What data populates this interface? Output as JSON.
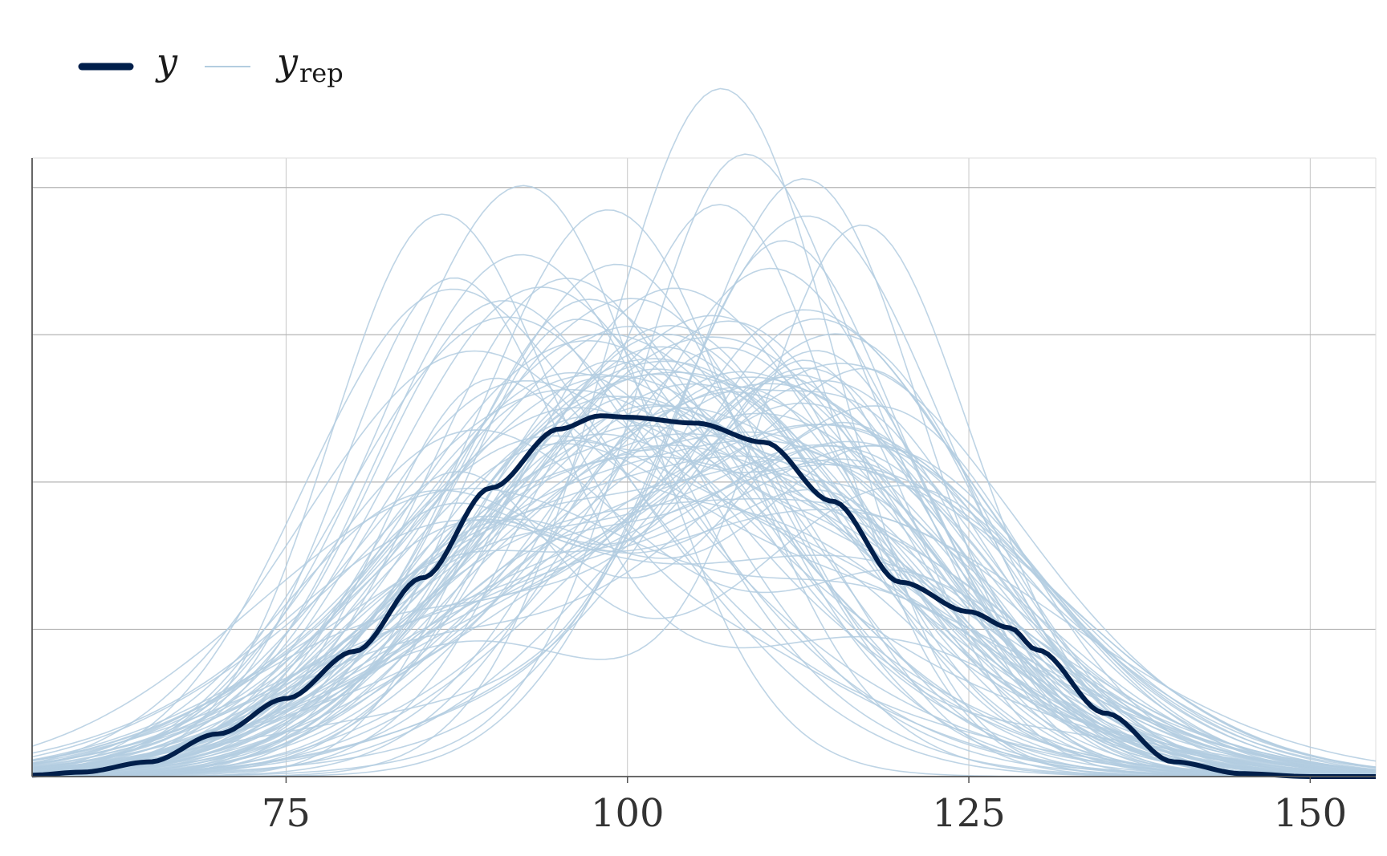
{
  "chart_data": {
    "type": "line",
    "title": "",
    "xlabel": "",
    "ylabel": "",
    "xlim": [
      56.4,
      154.8
    ],
    "ylim": [
      0,
      0.042
    ],
    "x_ticks": [
      75,
      100,
      125,
      150
    ],
    "x_tick_labels": [
      "75",
      "100",
      "125",
      "150"
    ],
    "y_gridlines": [
      0.01,
      0.02,
      0.03,
      0.04
    ],
    "y_tick_labels_shown": false,
    "grid": true,
    "legend": {
      "placement": "top-left",
      "entries": [
        {
          "symbol": "y",
          "subscript": "",
          "key": "observed"
        },
        {
          "symbol": "y",
          "subscript": "rep",
          "key": "replicated"
        }
      ]
    },
    "colors": {
      "observed": "#011f4b",
      "replicated": "#b3cde0",
      "grid": "#c8c8c8",
      "axis": "#555555"
    },
    "observed": {
      "x": [
        56.4,
        60,
        65,
        70,
        75,
        80,
        85,
        90,
        95,
        98,
        100,
        105,
        110,
        115,
        120,
        125,
        128,
        130,
        135,
        140,
        145,
        150,
        154.8
      ],
      "y": [
        0.0001,
        0.0003,
        0.001,
        0.0029,
        0.0053,
        0.0085,
        0.0135,
        0.0196,
        0.0236,
        0.0245,
        0.0244,
        0.024,
        0.0227,
        0.0187,
        0.0132,
        0.0112,
        0.0101,
        0.0086,
        0.0043,
        0.001,
        0.0002,
        0.0,
        0.0
      ]
    },
    "replicated_draws": 100,
    "replicated_summary": {
      "x": [
        56.4,
        60,
        65,
        70,
        75,
        80,
        85,
        90,
        95,
        100,
        105,
        110,
        115,
        120,
        125,
        130,
        135,
        140,
        145,
        150,
        154.8
      ],
      "y": [
        0.0008,
        0.0015,
        0.0032,
        0.0058,
        0.0092,
        0.0133,
        0.0178,
        0.0221,
        0.0253,
        0.0268,
        0.0264,
        0.0245,
        0.0212,
        0.0171,
        0.0128,
        0.0088,
        0.0055,
        0.0031,
        0.0016,
        0.0008,
        0.0004
      ]
    }
  }
}
